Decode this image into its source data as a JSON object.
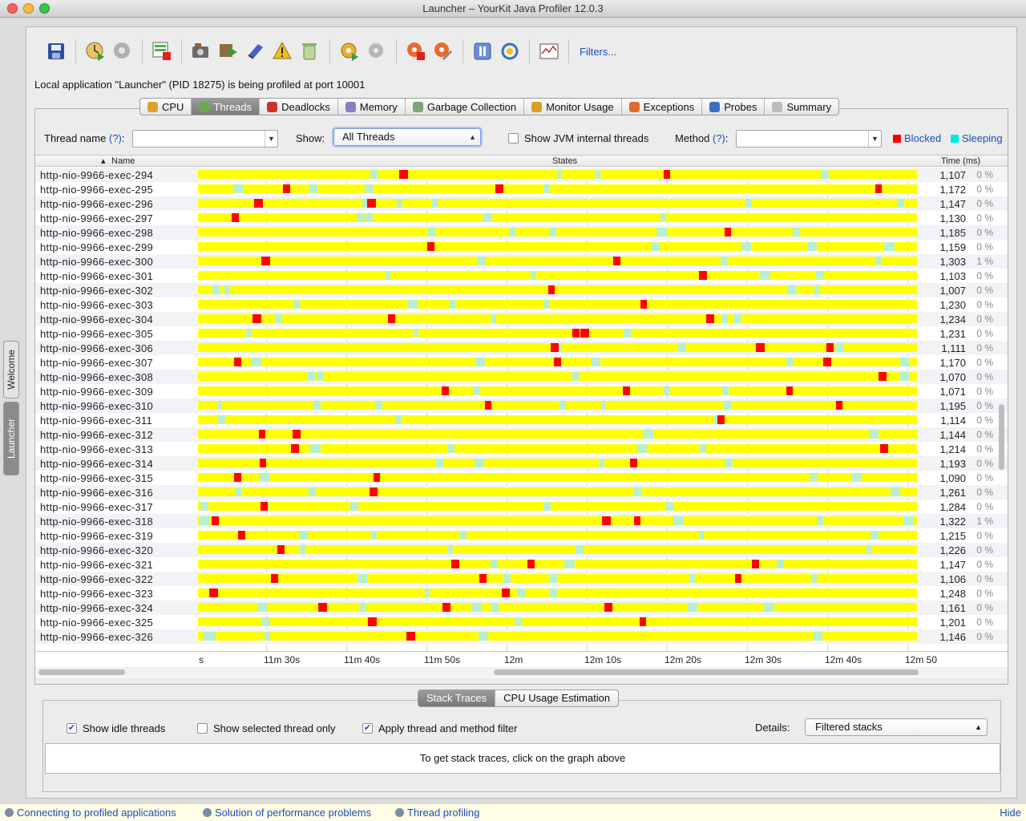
{
  "window": {
    "title": "Launcher – YourKit Java Profiler 12.0.3"
  },
  "side_tabs": [
    "Welcome",
    "Launcher"
  ],
  "toolbar": {
    "filters_label": "Filters..."
  },
  "status_line": "Local application \"Launcher\" (PID 18275) is being profiled at port 10001",
  "tabs": [
    {
      "label": "CPU",
      "icon": "cpu-icon",
      "color": "#e0a030"
    },
    {
      "label": "Threads",
      "icon": "threads-icon",
      "color": "#6aa84f"
    },
    {
      "label": "Deadlocks",
      "icon": "deadlocks-icon",
      "color": "#d0312d"
    },
    {
      "label": "Memory",
      "icon": "memory-icon",
      "color": "#8e7cc3"
    },
    {
      "label": "Garbage Collection",
      "icon": "trash-icon",
      "color": "#7aa67a"
    },
    {
      "label": "Monitor Usage",
      "icon": "monitor-icon",
      "color": "#d8a020"
    },
    {
      "label": "Exceptions",
      "icon": "exceptions-icon",
      "color": "#e06c2c"
    },
    {
      "label": "Probes",
      "icon": "probes-icon",
      "color": "#3d6cc4"
    },
    {
      "label": "Summary",
      "icon": "summary-icon",
      "color": "#bbbbbb"
    }
  ],
  "filter": {
    "thread_name_label": "Thread name",
    "help_mark": "(?)",
    "colon": ":",
    "show_label": "Show:",
    "show_value": "All Threads",
    "jvm_internal_label": "Show JVM internal threads",
    "method_label": "Method",
    "legend_blocked": "Blocked",
    "legend_sleeping": "Sleeping",
    "blocked_color": "#ff0000",
    "sleeping_color": "#00e5e5",
    "running_color": "#ffff00"
  },
  "grid": {
    "col_name": "Name",
    "col_states": "States",
    "col_time": "Time (ms)",
    "axis_labels": [
      "s",
      "11m 30s",
      "11m 40s",
      "11m 50s",
      "12m",
      "12m 10s",
      "12m 20s",
      "12m 30s",
      "12m 40s",
      "12m 50"
    ],
    "rows": [
      {
        "name": "http-nio-9966-exec-294",
        "time": "1,107",
        "pct": "0 %"
      },
      {
        "name": "http-nio-9966-exec-295",
        "time": "1,172",
        "pct": "0 %"
      },
      {
        "name": "http-nio-9966-exec-296",
        "time": "1,147",
        "pct": "0 %"
      },
      {
        "name": "http-nio-9966-exec-297",
        "time": "1,130",
        "pct": "0 %"
      },
      {
        "name": "http-nio-9966-exec-298",
        "time": "1,185",
        "pct": "0 %"
      },
      {
        "name": "http-nio-9966-exec-299",
        "time": "1,159",
        "pct": "0 %"
      },
      {
        "name": "http-nio-9966-exec-300",
        "time": "1,303",
        "pct": "1 %"
      },
      {
        "name": "http-nio-9966-exec-301",
        "time": "1,103",
        "pct": "0 %"
      },
      {
        "name": "http-nio-9966-exec-302",
        "time": "1,007",
        "pct": "0 %"
      },
      {
        "name": "http-nio-9966-exec-303",
        "time": "1,230",
        "pct": "0 %"
      },
      {
        "name": "http-nio-9966-exec-304",
        "time": "1,234",
        "pct": "0 %"
      },
      {
        "name": "http-nio-9966-exec-305",
        "time": "1,231",
        "pct": "0 %"
      },
      {
        "name": "http-nio-9966-exec-306",
        "time": "1,111",
        "pct": "0 %"
      },
      {
        "name": "http-nio-9966-exec-307",
        "time": "1,170",
        "pct": "0 %"
      },
      {
        "name": "http-nio-9966-exec-308",
        "time": "1,070",
        "pct": "0 %"
      },
      {
        "name": "http-nio-9966-exec-309",
        "time": "1,071",
        "pct": "0 %"
      },
      {
        "name": "http-nio-9966-exec-310",
        "time": "1,195",
        "pct": "0 %"
      },
      {
        "name": "http-nio-9966-exec-311",
        "time": "1,114",
        "pct": "0 %"
      },
      {
        "name": "http-nio-9966-exec-312",
        "time": "1,144",
        "pct": "0 %"
      },
      {
        "name": "http-nio-9966-exec-313",
        "time": "1,214",
        "pct": "0 %"
      },
      {
        "name": "http-nio-9966-exec-314",
        "time": "1,193",
        "pct": "0 %"
      },
      {
        "name": "http-nio-9966-exec-315",
        "time": "1,090",
        "pct": "0 %"
      },
      {
        "name": "http-nio-9966-exec-316",
        "time": "1,261",
        "pct": "0 %"
      },
      {
        "name": "http-nio-9966-exec-317",
        "time": "1,284",
        "pct": "0 %"
      },
      {
        "name": "http-nio-9966-exec-318",
        "time": "1,322",
        "pct": "1 %"
      },
      {
        "name": "http-nio-9966-exec-319",
        "time": "1,215",
        "pct": "0 %"
      },
      {
        "name": "http-nio-9966-exec-320",
        "time": "1,226",
        "pct": "0 %"
      },
      {
        "name": "http-nio-9966-exec-321",
        "time": "1,147",
        "pct": "0 %"
      },
      {
        "name": "http-nio-9966-exec-322",
        "time": "1,106",
        "pct": "0 %"
      },
      {
        "name": "http-nio-9966-exec-323",
        "time": "1,248",
        "pct": "0 %"
      },
      {
        "name": "http-nio-9966-exec-324",
        "time": "1,161",
        "pct": "0 %"
      },
      {
        "name": "http-nio-9966-exec-325",
        "time": "1,201",
        "pct": "0 %"
      },
      {
        "name": "http-nio-9966-exec-326",
        "time": "1,146",
        "pct": "0 %"
      }
    ]
  },
  "bottom": {
    "tabs": [
      "Stack Traces",
      "CPU Usage Estimation"
    ],
    "show_idle_label": "Show idle threads",
    "show_selected_label": "Show selected thread only",
    "apply_filter_label": "Apply thread and method filter",
    "details_label": "Details:",
    "details_value": "Filtered stacks",
    "message": "To get stack traces, click on the graph above"
  },
  "footer": {
    "links": [
      "Connecting to profiled applications",
      "Solution of performance problems",
      "Thread profiling"
    ],
    "hide_label": "Hide"
  }
}
